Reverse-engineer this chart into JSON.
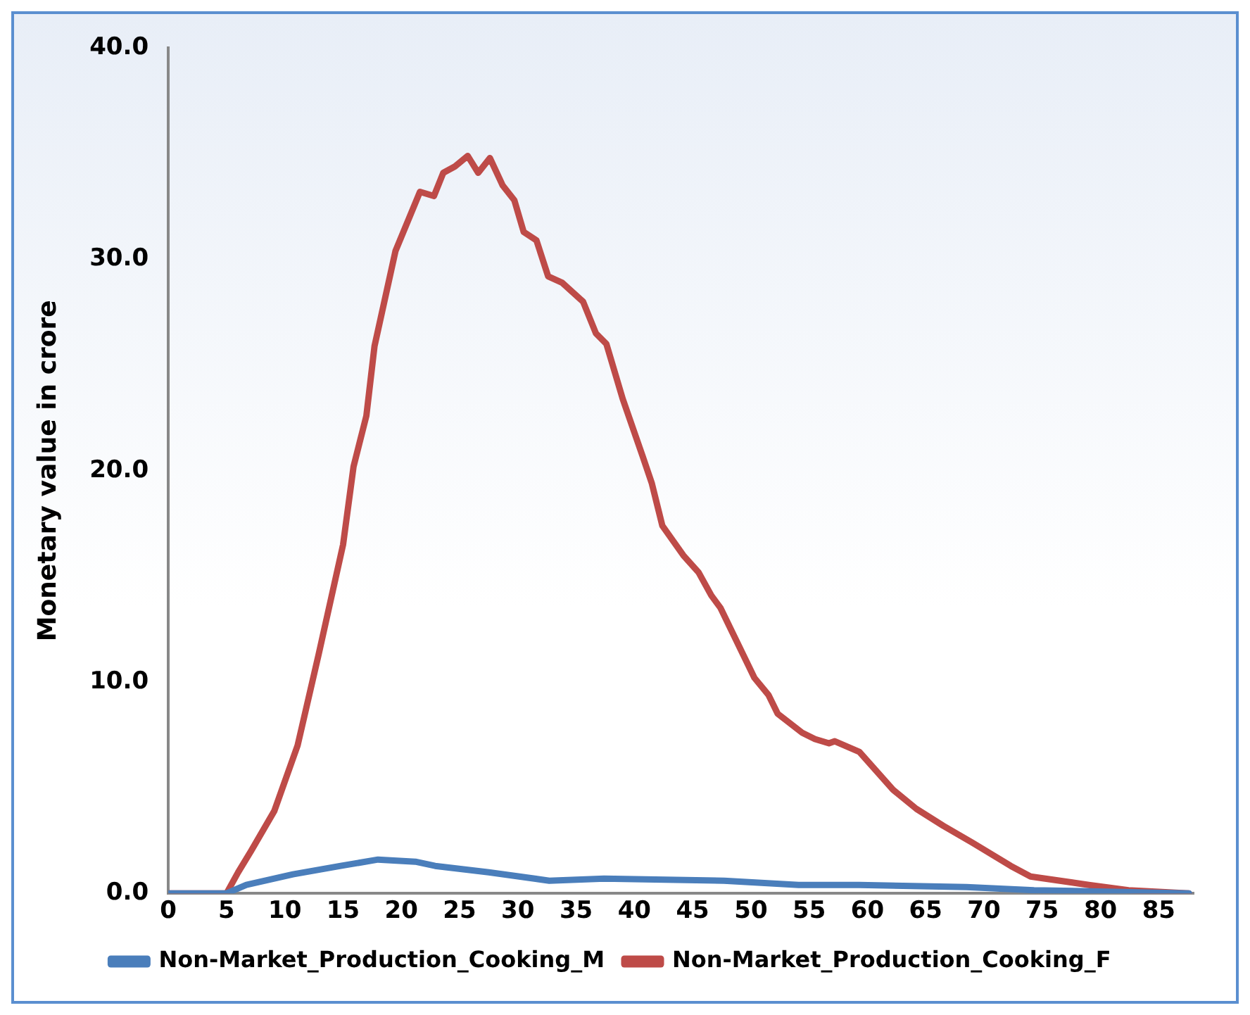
{
  "chart_data": {
    "type": "line",
    "ylabel": "Monetary value in crore",
    "xlim": [
      0,
      88
    ],
    "xticks": [
      0,
      5,
      10,
      15,
      20,
      25,
      30,
      35,
      40,
      45,
      50,
      55,
      60,
      65,
      70,
      75,
      80,
      85
    ],
    "ylim": [
      0,
      40
    ],
    "yticks": [
      {
        "value": 0,
        "label": "0.0"
      },
      {
        "value": 10,
        "label": "10.0"
      },
      {
        "value": 20,
        "label": "20.0"
      },
      {
        "value": 30,
        "label": "30.0"
      },
      {
        "value": 40,
        "label": "40.0"
      }
    ],
    "grid": false,
    "legend": "bottom",
    "marker": "none",
    "line_style": "solid",
    "series": [
      {
        "name": "Non-Market_Production_Cooking_M",
        "color": "#4a7ebb",
        "x": [
          0,
          5,
          6.7,
          10.7,
          14.8,
          18,
          21.2,
          22.9,
          27.5,
          32.7,
          37.4,
          47.7,
          54.1,
          59.3,
          68.5,
          74.3,
          87.6
        ],
        "values": [
          0,
          0,
          0.4,
          0.9,
          1.3,
          1.6,
          1.5,
          1.3,
          1.0,
          0.6,
          0.7,
          0.6,
          0.4,
          0.4,
          0.3,
          0.15,
          0
        ]
      },
      {
        "name": "Non-Market_Production_Cooking_F",
        "color": "#be4b48",
        "x": [
          0,
          5,
          6,
          7.1,
          9.1,
          11.1,
          12.9,
          15,
          15.9,
          17,
          17.7,
          19.5,
          21.6,
          22.8,
          23.6,
          24.6,
          25.7,
          26.6,
          27.6,
          28.7,
          29.7,
          30.5,
          31.6,
          32.6,
          33.8,
          35.6,
          36.7,
          37.6,
          39.0,
          40.7,
          41.5,
          42.4,
          44.2,
          45.5,
          46.6,
          47.4,
          50.3,
          51.5,
          52.3,
          54.4,
          55.5,
          56.7,
          57.2,
          59.3,
          62.2,
          64.2,
          66.5,
          69,
          72.3,
          74,
          79,
          82.4,
          87.6
        ],
        "values": [
          0,
          0,
          1.0,
          2.0,
          3.9,
          7.0,
          11.3,
          16.5,
          20.2,
          22.6,
          25.9,
          30.4,
          33.2,
          33.0,
          34.1,
          34.4,
          34.9,
          34.1,
          34.8,
          33.5,
          32.8,
          31.3,
          30.9,
          29.2,
          28.9,
          28.0,
          26.5,
          26.0,
          23.4,
          20.7,
          19.4,
          17.4,
          16.0,
          15.2,
          14.1,
          13.5,
          10.2,
          9.4,
          8.5,
          7.6,
          7.3,
          7.1,
          7.2,
          6.7,
          4.9,
          4.0,
          3.2,
          2.4,
          1.3,
          0.8,
          0.4,
          0.15,
          0
        ]
      }
    ]
  }
}
